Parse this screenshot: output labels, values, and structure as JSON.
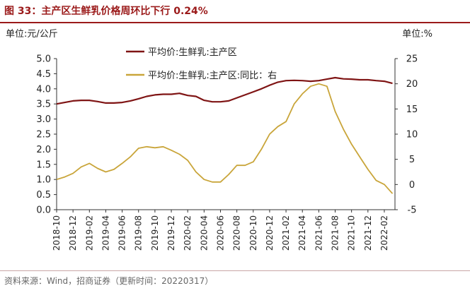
{
  "header": {
    "title": "图 33：主产区生鲜乳价格周环比下行 0.24%",
    "source": "资料来源：Wind，招商证券（更新时间：20220317）"
  },
  "chart_data": {
    "type": "line",
    "title": "图 33：主产区生鲜乳价格周环比下行 0.24%",
    "left_unit": "单位:元/公斤",
    "right_unit": "单位:%",
    "y_left_lim": [
      0,
      5
    ],
    "y_left_ticks": [
      "0.0",
      "0.5",
      "1.0",
      "1.5",
      "2.0",
      "2.5",
      "3.0",
      "3.5",
      "4.0",
      "4.5",
      "5.0"
    ],
    "y_right_lim": [
      -5,
      25
    ],
    "y_right_ticks": [
      "-5",
      "0",
      "5",
      "10",
      "15",
      "20",
      "25"
    ],
    "x_tick_labels": [
      "2018-10",
      "2018-12",
      "2019-02",
      "2019-04",
      "2019-06",
      "2019-08",
      "2019-10",
      "2019-12",
      "2020-02",
      "2020-04",
      "2020-06",
      "2020-08",
      "2020-10",
      "2020-12",
      "2021-02",
      "2021-04",
      "2021-06",
      "2021-08",
      "2021-10",
      "2021-12",
      "2022-02"
    ],
    "grid": false,
    "legend_position": "top-left",
    "series": [
      {
        "name": "平均价:生鲜乳:主产区",
        "axis": "left",
        "color": "#7f1414",
        "points": [
          [
            "2018-10",
            3.5
          ],
          [
            "2018-11",
            3.55
          ],
          [
            "2018-12",
            3.6
          ],
          [
            "2019-01",
            3.62
          ],
          [
            "2019-02",
            3.62
          ],
          [
            "2019-03",
            3.58
          ],
          [
            "2019-04",
            3.53
          ],
          [
            "2019-05",
            3.53
          ],
          [
            "2019-06",
            3.55
          ],
          [
            "2019-07",
            3.6
          ],
          [
            "2019-08",
            3.67
          ],
          [
            "2019-09",
            3.75
          ],
          [
            "2019-10",
            3.8
          ],
          [
            "2019-11",
            3.82
          ],
          [
            "2019-12",
            3.82
          ],
          [
            "2020-01",
            3.85
          ],
          [
            "2020-02",
            3.78
          ],
          [
            "2020-03",
            3.75
          ],
          [
            "2020-04",
            3.62
          ],
          [
            "2020-05",
            3.57
          ],
          [
            "2020-06",
            3.57
          ],
          [
            "2020-07",
            3.6
          ],
          [
            "2020-08",
            3.7
          ],
          [
            "2020-09",
            3.8
          ],
          [
            "2020-10",
            3.9
          ],
          [
            "2020-11",
            4.0
          ],
          [
            "2020-12",
            4.12
          ],
          [
            "2021-01",
            4.22
          ],
          [
            "2021-02",
            4.27
          ],
          [
            "2021-03",
            4.28
          ],
          [
            "2021-04",
            4.27
          ],
          [
            "2021-05",
            4.25
          ],
          [
            "2021-06",
            4.27
          ],
          [
            "2021-07",
            4.32
          ],
          [
            "2021-08",
            4.37
          ],
          [
            "2021-09",
            4.33
          ],
          [
            "2021-10",
            4.32
          ],
          [
            "2021-11",
            4.3
          ],
          [
            "2021-12",
            4.3
          ],
          [
            "2022-01",
            4.27
          ],
          [
            "2022-02",
            4.25
          ],
          [
            "2022-03",
            4.18
          ]
        ]
      },
      {
        "name": "平均价:生鲜乳:主产区:同比：右",
        "axis": "right",
        "color": "#c9a53a",
        "points": [
          [
            "2018-10",
            1.0
          ],
          [
            "2018-11",
            1.5
          ],
          [
            "2018-12",
            2.2
          ],
          [
            "2019-01",
            3.5
          ],
          [
            "2019-02",
            4.2
          ],
          [
            "2019-03",
            3.2
          ],
          [
            "2019-04",
            2.5
          ],
          [
            "2019-05",
            3.0
          ],
          [
            "2019-06",
            4.2
          ],
          [
            "2019-07",
            5.5
          ],
          [
            "2019-08",
            7.2
          ],
          [
            "2019-09",
            7.5
          ],
          [
            "2019-10",
            7.3
          ],
          [
            "2019-11",
            7.5
          ],
          [
            "2019-12",
            6.8
          ],
          [
            "2020-01",
            6.0
          ],
          [
            "2020-02",
            4.8
          ],
          [
            "2020-03",
            2.5
          ],
          [
            "2020-04",
            1.0
          ],
          [
            "2020-05",
            0.5
          ],
          [
            "2020-06",
            0.5
          ],
          [
            "2020-07",
            2.0
          ],
          [
            "2020-08",
            3.8
          ],
          [
            "2020-09",
            3.8
          ],
          [
            "2020-10",
            4.5
          ],
          [
            "2020-11",
            7.0
          ],
          [
            "2020-12",
            10.0
          ],
          [
            "2021-01",
            11.5
          ],
          [
            "2021-02",
            12.5
          ],
          [
            "2021-03",
            16.0
          ],
          [
            "2021-04",
            18.0
          ],
          [
            "2021-05",
            19.5
          ],
          [
            "2021-06",
            20.0
          ],
          [
            "2021-07",
            19.5
          ],
          [
            "2021-08",
            14.5
          ],
          [
            "2021-09",
            11.0
          ],
          [
            "2021-10",
            8.0
          ],
          [
            "2021-11",
            5.5
          ],
          [
            "2021-12",
            3.0
          ],
          [
            "2022-01",
            0.8
          ],
          [
            "2022-02",
            0.0
          ],
          [
            "2022-03",
            -1.8
          ]
        ]
      }
    ]
  }
}
